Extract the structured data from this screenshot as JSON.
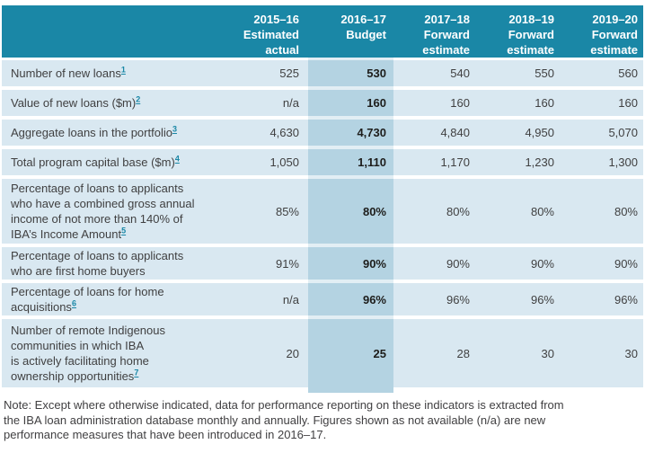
{
  "table": {
    "columns": [
      {
        "label": "2015–16\nEstimated\nactual"
      },
      {
        "label": "2016–17\nBudget",
        "highlight": true
      },
      {
        "label": "2017–18\nForward\nestimate"
      },
      {
        "label": "2018–19\nForward\nestimate"
      },
      {
        "label": "2019–20\nForward\nestimate"
      }
    ],
    "rows": [
      {
        "label": "Number of new loans",
        "footnote": "1",
        "values": [
          "525",
          "530",
          "540",
          "550",
          "560"
        ]
      },
      {
        "label": "Value of new loans ($m)",
        "footnote": "2",
        "values": [
          "n/a",
          "160",
          "160",
          "160",
          "160"
        ]
      },
      {
        "label": "Aggregate loans in the portfolio",
        "footnote": "3",
        "values": [
          "4,630",
          "4,730",
          "4,840",
          "4,950",
          "5,070"
        ]
      },
      {
        "label": "Total program capital base ($m)",
        "footnote": "4",
        "values": [
          "1,050",
          "1,110",
          "1,170",
          "1,230",
          "1,300"
        ]
      },
      {
        "label": "Percentage of loans to applicants\nwho have a combined gross annual\nincome of not more than 140% of\nIBA’s Income Amount",
        "footnote": "5",
        "values": [
          "85%",
          "80%",
          "80%",
          "80%",
          "80%"
        ]
      },
      {
        "label": "Percentage of loans to applicants\nwho are first home buyers",
        "footnote": "",
        "values": [
          "91%",
          "90%",
          "90%",
          "90%",
          "90%"
        ]
      },
      {
        "label": "Percentage of loans for home\nacquisitions",
        "footnote": "6",
        "values": [
          "n/a",
          "96%",
          "96%",
          "96%",
          "96%"
        ]
      },
      {
        "label": "Number of remote Indigenous\ncommunities in which IBA\nis actively facilitating home\nownership opportunities",
        "footnote": "7",
        "values": [
          "20",
          "25",
          "28",
          "30",
          "30"
        ]
      }
    ]
  },
  "note": "Note: Except where otherwise indicated, data for performance reporting on these indicators is extracted from\nthe IBA loan administration database monthly and annually. Figures shown as not available (n/a) are new\nperformance measures that have been introduced in 2016–17.",
  "colors": {
    "header_teal": "#1a87a6",
    "row_blue": "#d9e8f1",
    "budget_band_blue": "#b4d3e2",
    "body_text": "#404041",
    "budget_value_text": "#1d1d1b",
    "footnote_link": "#1a87a6"
  }
}
